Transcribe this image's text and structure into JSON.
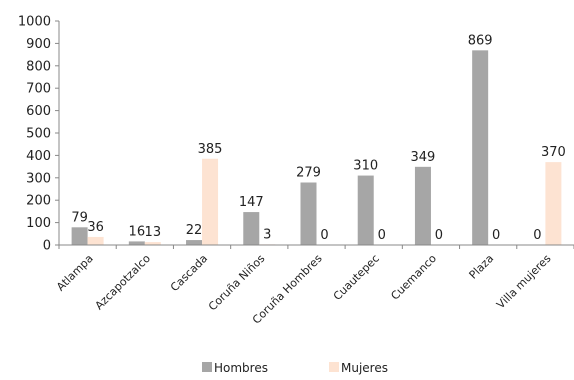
{
  "chart_data": {
    "type": "bar",
    "categories": [
      "Atlampa",
      "Azcapotzalco",
      "Cascada",
      "Coruña Niños",
      "Coruña Hombres",
      "Cuautepec",
      "Cuemanco",
      "Plaza",
      "Villa mujeres"
    ],
    "series": [
      {
        "name": "Hombres",
        "values": [
          79,
          16,
          22,
          147,
          279,
          310,
          349,
          869,
          0
        ],
        "color": "#a6a6a6"
      },
      {
        "name": "Mujeres",
        "values": [
          36,
          13,
          385,
          3,
          0,
          0,
          0,
          0,
          370
        ],
        "color": "#fde3d2"
      }
    ],
    "y_ticks": [
      0,
      100,
      200,
      300,
      400,
      500,
      600,
      700,
      800,
      900,
      1000
    ],
    "ylim": [
      0,
      1000
    ],
    "grid": false,
    "legend_position": "bottom",
    "data_labels": true
  }
}
